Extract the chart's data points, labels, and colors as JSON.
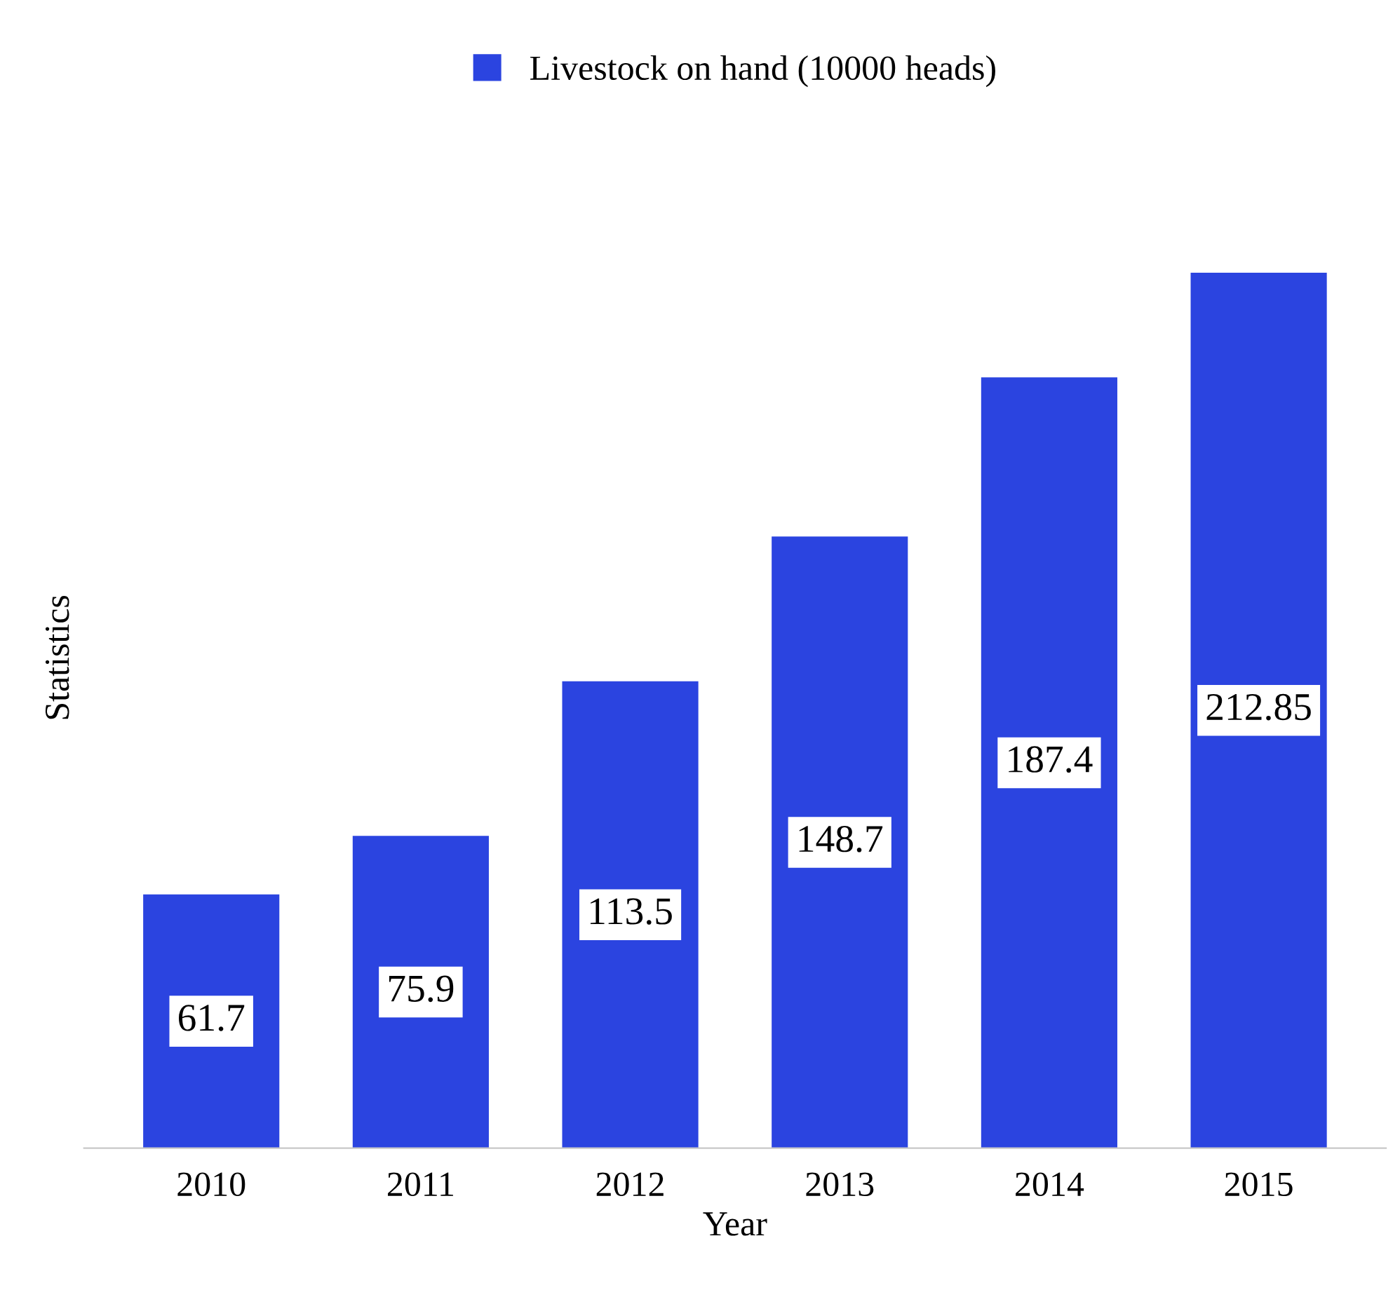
{
  "chart_data": {
    "type": "bar",
    "xlabel": "Year",
    "ylabel": "Statistics",
    "categories": [
      "2010",
      "2011",
      "2012",
      "2013",
      "2014",
      "2015"
    ],
    "series": [
      {
        "name": "Livestock on hand (10000 heads)",
        "color": "#2b44e0",
        "values": [
          61.7,
          75.9,
          113.5,
          148.7,
          187.4,
          212.85
        ]
      }
    ],
    "data_labels": true,
    "legend": "top",
    "grid": false
  }
}
